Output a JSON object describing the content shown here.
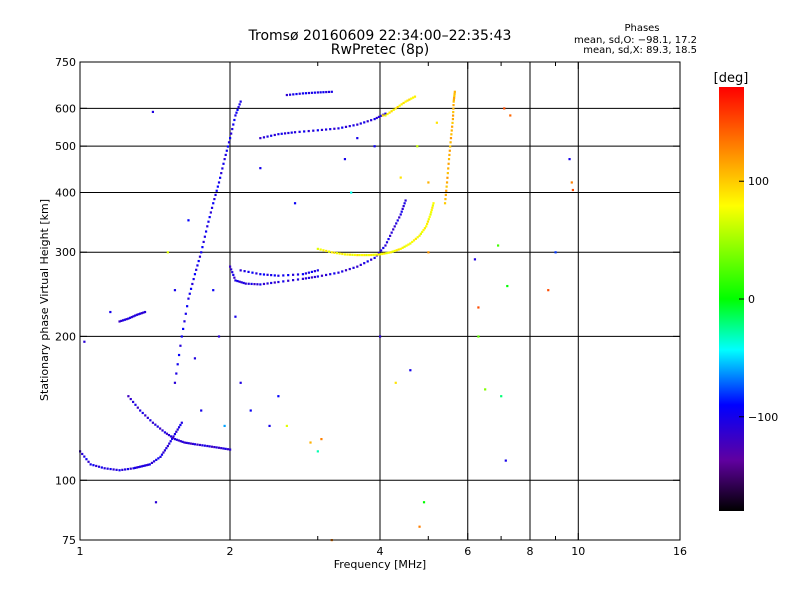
{
  "chart_data": {
    "type": "scatter",
    "title": "Tromsø 20160609 22:34:00–22:35:43",
    "subtitle": "RwPretec (8p)",
    "xlabel": "Frequency [MHz]",
    "ylabel": "Stationary phase Virtual Height [km]",
    "x_scale": "log",
    "y_scale": "log",
    "xlim": [
      1,
      16
    ],
    "ylim": [
      75,
      750
    ],
    "x_ticks": [
      1,
      2,
      4,
      6,
      8,
      10,
      16
    ],
    "x_tick_labels": [
      "1",
      "2",
      "4",
      "6",
      "8",
      "10",
      "16"
    ],
    "x_minor_ticks": [
      3,
      5,
      7,
      9
    ],
    "x_gridlines": [
      2,
      4,
      6,
      8,
      10
    ],
    "y_ticks": [
      75,
      100,
      200,
      300,
      400,
      500,
      600,
      750
    ],
    "y_tick_labels": [
      "75",
      "100",
      "200",
      "300",
      "400",
      "500",
      "600",
      "750"
    ],
    "y_gridlines": [
      100,
      200,
      300,
      400,
      500,
      600
    ],
    "grid": true,
    "phase_box": {
      "title": "Phases",
      "line_o": "mean, sd,O: −98.1, 17.2",
      "line_x": "mean, sd,X:  89.3, 18.5"
    },
    "colorbar": {
      "label": "[deg]",
      "range": [
        -180,
        180
      ],
      "ticks": [
        100,
        0,
        -100
      ],
      "tick_labels": [
        "100",
        "0",
        "−100"
      ],
      "colors": [
        "#ff0000",
        "#ff8000",
        "#ffff00",
        "#00ff00",
        "#00ffff",
        "#0000ff",
        "#6000a0",
        "#000000"
      ]
    },
    "traces": [
      {
        "name": "",
        "phase": -105,
        "points": [
          [
            1.0,
            115
          ],
          [
            1.05,
            108
          ],
          [
            1.12,
            106
          ],
          [
            1.2,
            105
          ],
          [
            1.28,
            106
          ],
          [
            1.33,
            107
          ],
          [
            1.38,
            108
          ],
          [
            1.45,
            112
          ],
          [
            1.5,
            118
          ],
          [
            1.55,
            125
          ],
          [
            1.6,
            132
          ]
        ]
      },
      {
        "name": "",
        "phase": -110,
        "points": [
          [
            1.25,
            150
          ],
          [
            1.32,
            140
          ],
          [
            1.4,
            132
          ],
          [
            1.48,
            126
          ],
          [
            1.55,
            122
          ],
          [
            1.62,
            120
          ],
          [
            1.7,
            119
          ],
          [
            1.8,
            118
          ],
          [
            1.9,
            117
          ],
          [
            2.0,
            116
          ]
        ]
      },
      {
        "name": "",
        "phase": -100,
        "points": [
          [
            1.55,
            160
          ],
          [
            1.6,
            200
          ],
          [
            1.65,
            240
          ],
          [
            1.7,
            270
          ],
          [
            1.75,
            300
          ],
          [
            1.8,
            340
          ],
          [
            1.85,
            380
          ],
          [
            1.9,
            420
          ],
          [
            1.95,
            470
          ],
          [
            2.0,
            520
          ],
          [
            2.05,
            580
          ],
          [
            2.1,
            620
          ]
        ]
      },
      {
        "name": "",
        "phase": -108,
        "points": [
          [
            2.0,
            280
          ],
          [
            2.05,
            262
          ],
          [
            2.15,
            258
          ],
          [
            2.3,
            257
          ],
          [
            2.5,
            260
          ],
          [
            2.8,
            264
          ],
          [
            3.0,
            267
          ],
          [
            3.3,
            272
          ],
          [
            3.6,
            280
          ],
          [
            3.9,
            292
          ],
          [
            4.1,
            310
          ],
          [
            4.25,
            335
          ],
          [
            4.4,
            360
          ],
          [
            4.5,
            385
          ]
        ]
      },
      {
        "name": "",
        "phase": -100,
        "points": [
          [
            2.1,
            275
          ],
          [
            2.3,
            270
          ],
          [
            2.5,
            268
          ],
          [
            2.8,
            270
          ],
          [
            3.0,
            275
          ]
        ]
      },
      {
        "name": "",
        "phase": 80,
        "points": [
          [
            3.0,
            305
          ],
          [
            3.2,
            300
          ],
          [
            3.4,
            297
          ],
          [
            3.6,
            296
          ],
          [
            3.8,
            296
          ],
          [
            4.0,
            297
          ],
          [
            4.2,
            300
          ],
          [
            4.4,
            305
          ],
          [
            4.6,
            313
          ],
          [
            4.8,
            325
          ],
          [
            4.95,
            340
          ],
          [
            5.05,
            360
          ],
          [
            5.12,
            380
          ]
        ]
      },
      {
        "name": "",
        "phase": -105,
        "points": [
          [
            2.3,
            520
          ],
          [
            2.5,
            530
          ],
          [
            2.7,
            535
          ],
          [
            3.0,
            540
          ],
          [
            3.3,
            545
          ],
          [
            3.6,
            555
          ],
          [
            3.9,
            570
          ],
          [
            4.1,
            585
          ]
        ]
      },
      {
        "name": "",
        "phase": 85,
        "points": [
          [
            4.1,
            580
          ],
          [
            4.3,
            600
          ],
          [
            4.5,
            620
          ],
          [
            4.7,
            635
          ]
        ]
      },
      {
        "name": "",
        "phase": 110,
        "points": [
          [
            5.4,
            380
          ],
          [
            5.45,
            420
          ],
          [
            5.5,
            470
          ],
          [
            5.55,
            520
          ],
          [
            5.6,
            570
          ],
          [
            5.62,
            620
          ],
          [
            5.65,
            650
          ]
        ]
      },
      {
        "name": "",
        "phase": -102,
        "points": [
          [
            2.6,
            640
          ],
          [
            2.8,
            645
          ],
          [
            3.0,
            648
          ],
          [
            3.2,
            650
          ]
        ]
      },
      {
        "name": "",
        "phase": -108,
        "points": [
          [
            1.2,
            215
          ],
          [
            1.25,
            218
          ],
          [
            1.3,
            222
          ],
          [
            1.35,
            225
          ]
        ]
      }
    ],
    "scattered_points": [
      [
        1.02,
        195,
        -110
      ],
      [
        1.15,
        225,
        -100
      ],
      [
        1.4,
        590,
        -105
      ],
      [
        1.42,
        90,
        -110
      ],
      [
        1.5,
        300,
        70
      ],
      [
        1.55,
        250,
        -100
      ],
      [
        1.65,
        350,
        -90
      ],
      [
        1.7,
        180,
        -105
      ],
      [
        1.75,
        140,
        -100
      ],
      [
        1.85,
        250,
        -95
      ],
      [
        1.9,
        200,
        -110
      ],
      [
        1.95,
        130,
        -60
      ],
      [
        2.05,
        220,
        -100
      ],
      [
        2.1,
        160,
        -105
      ],
      [
        2.2,
        140,
        -95
      ],
      [
        2.3,
        450,
        -100
      ],
      [
        2.4,
        130,
        -100
      ],
      [
        2.5,
        150,
        -90
      ],
      [
        2.6,
        130,
        70
      ],
      [
        2.7,
        380,
        -95
      ],
      [
        2.9,
        120,
        110
      ],
      [
        3.0,
        115,
        -30
      ],
      [
        3.05,
        122,
        130
      ],
      [
        3.4,
        470,
        -100
      ],
      [
        3.5,
        400,
        -40
      ],
      [
        3.6,
        520,
        -100
      ],
      [
        3.9,
        500,
        -95
      ],
      [
        4.0,
        200,
        -110
      ],
      [
        4.05,
        580,
        95
      ],
      [
        4.3,
        160,
        90
      ],
      [
        4.4,
        430,
        90
      ],
      [
        4.6,
        170,
        -100
      ],
      [
        4.75,
        500,
        60
      ],
      [
        4.8,
        80,
        130
      ],
      [
        4.9,
        90,
        0
      ],
      [
        5.0,
        420,
        110
      ],
      [
        5.2,
        560,
        90
      ],
      [
        6.2,
        290,
        -105
      ],
      [
        6.3,
        230,
        150
      ],
      [
        6.3,
        200,
        30
      ],
      [
        6.5,
        155,
        40
      ],
      [
        6.9,
        310,
        20
      ],
      [
        7.0,
        150,
        -20
      ],
      [
        7.1,
        600,
        150
      ],
      [
        7.15,
        110,
        -100
      ],
      [
        7.2,
        255,
        0
      ],
      [
        7.3,
        580,
        140
      ],
      [
        8.7,
        250,
        150
      ],
      [
        9.0,
        300,
        -80
      ],
      [
        9.6,
        470,
        -100
      ],
      [
        9.7,
        420,
        130
      ],
      [
        9.75,
        405,
        150
      ],
      [
        3.2,
        75,
        130
      ],
      [
        5.0,
        300,
        120
      ]
    ]
  }
}
